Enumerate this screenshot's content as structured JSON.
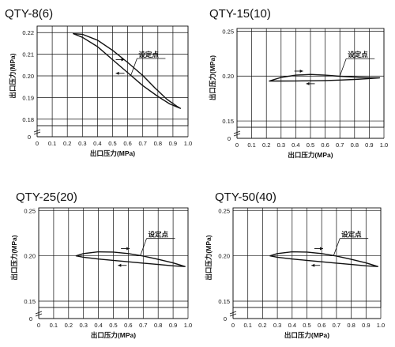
{
  "colors": {
    "ink": "#111111",
    "grid": "#111111",
    "background": "#ffffff"
  },
  "chart_data": [
    {
      "type": "line",
      "title": "QTY-8(6)",
      "xlabel": "出口压力(MPa)",
      "ylabel": "出口压力(MPa)",
      "annotation": "设定点",
      "xlim": [
        0,
        1.0
      ],
      "ylim": [
        0.177,
        0.223
      ],
      "x_ticks": [
        "0",
        "0.1",
        "0.2",
        "0.3",
        "0.4",
        "0.5",
        "0.6",
        "0.7",
        "0.8",
        "0.9",
        "1.0"
      ],
      "y_ticks": [
        {
          "value": 0.18,
          "label": "0.18"
        },
        {
          "value": 0.19,
          "label": "0.19"
        },
        {
          "value": 0.2,
          "label": "0.20"
        },
        {
          "value": 0.21,
          "label": "0.21"
        },
        {
          "value": 0.22,
          "label": "0.22"
        }
      ],
      "y_zero_label": "0",
      "y_break": true,
      "setpoint": [
        0.62,
        0.2
      ],
      "loop": [
        [
          0.24,
          0.2195
        ],
        [
          0.3,
          0.2178
        ],
        [
          0.4,
          0.2135
        ],
        [
          0.5,
          0.2075
        ],
        [
          0.6,
          0.2015
        ],
        [
          0.7,
          0.1955
        ],
        [
          0.8,
          0.1905
        ],
        [
          0.88,
          0.187
        ],
        [
          0.95,
          0.185
        ],
        [
          0.93,
          0.1858
        ],
        [
          0.86,
          0.1892
        ],
        [
          0.78,
          0.1945
        ],
        [
          0.7,
          0.2002
        ],
        [
          0.6,
          0.2062
        ],
        [
          0.5,
          0.2118
        ],
        [
          0.4,
          0.2165
        ],
        [
          0.3,
          0.2192
        ],
        [
          0.24,
          0.2195
        ]
      ],
      "arrows": [
        {
          "at": [
            0.55,
            0.2075
          ],
          "dir": "right",
          "side": "above"
        },
        {
          "at": [
            0.55,
            0.2012
          ],
          "dir": "left",
          "side": "below"
        }
      ]
    },
    {
      "type": "line",
      "title": "QTY-15(10)",
      "xlabel": "出口压力(MPa)",
      "ylabel": "出口压力(MPa)",
      "annotation": "设定点",
      "xlim": [
        0,
        1.0
      ],
      "ylim": [
        0.143,
        0.253
      ],
      "x_ticks": [
        "0",
        "0.1",
        "0.2",
        "0.3",
        "0.4",
        "0.5",
        "0.6",
        "0.7",
        "0.8",
        "0.9",
        "1.0"
      ],
      "y_ticks": [
        {
          "value": 0.15,
          "label": "0.15"
        },
        {
          "value": 0.2,
          "label": "0.20"
        },
        {
          "value": 0.25,
          "label": "0.25"
        }
      ],
      "y_zero_label": "0",
      "y_break": true,
      "setpoint": [
        0.7,
        0.2
      ],
      "loop": [
        [
          0.22,
          0.1945
        ],
        [
          0.3,
          0.1985
        ],
        [
          0.4,
          0.201
        ],
        [
          0.5,
          0.2018
        ],
        [
          0.6,
          0.201
        ],
        [
          0.7,
          0.1998
        ],
        [
          0.8,
          0.199
        ],
        [
          0.9,
          0.1982
        ],
        [
          0.97,
          0.198
        ],
        [
          0.9,
          0.1972
        ],
        [
          0.8,
          0.1962
        ],
        [
          0.7,
          0.1955
        ],
        [
          0.6,
          0.195
        ],
        [
          0.5,
          0.1947
        ],
        [
          0.4,
          0.1946
        ],
        [
          0.3,
          0.1945
        ],
        [
          0.22,
          0.1945
        ]
      ],
      "arrows": [
        {
          "at": [
            0.42,
            0.2055
          ],
          "dir": "right",
          "side": "above"
        },
        {
          "at": [
            0.5,
            0.1915
          ],
          "dir": "left",
          "side": "below"
        }
      ]
    },
    {
      "type": "line",
      "title": "QTY-25(20)",
      "xlabel": "出口压力(MPa)",
      "ylabel": "出口压力(MPa)",
      "annotation": "设定点",
      "xlim": [
        0,
        1.0
      ],
      "ylim": [
        0.143,
        0.253
      ],
      "x_ticks": [
        "0",
        "0.1",
        "0.2",
        "0.3",
        "0.4",
        "0.5",
        "0.6",
        "0.7",
        "0.8",
        "0.9",
        "1.0"
      ],
      "y_ticks": [
        {
          "value": 0.15,
          "label": "0.15"
        },
        {
          "value": 0.2,
          "label": "0.20"
        },
        {
          "value": 0.25,
          "label": "0.25"
        }
      ],
      "y_zero_label": "0",
      "y_break": true,
      "setpoint": [
        0.68,
        0.2
      ],
      "loop": [
        [
          0.25,
          0.2
        ],
        [
          0.3,
          0.2025
        ],
        [
          0.4,
          0.2045
        ],
        [
          0.5,
          0.2042
        ],
        [
          0.6,
          0.2025
        ],
        [
          0.7,
          0.1998
        ],
        [
          0.8,
          0.1962
        ],
        [
          0.9,
          0.1922
        ],
        [
          0.98,
          0.1882
        ],
        [
          0.9,
          0.189
        ],
        [
          0.8,
          0.1905
        ],
        [
          0.7,
          0.192
        ],
        [
          0.6,
          0.1935
        ],
        [
          0.5,
          0.195
        ],
        [
          0.4,
          0.1965
        ],
        [
          0.3,
          0.1985
        ],
        [
          0.25,
          0.2
        ]
      ],
      "arrows": [
        {
          "at": [
            0.58,
            0.208
          ],
          "dir": "right",
          "side": "above"
        },
        {
          "at": [
            0.56,
            0.1895
          ],
          "dir": "left",
          "side": "below"
        }
      ]
    },
    {
      "type": "line",
      "title": "QTY-50(40)",
      "xlabel": "出口压力(MPa)",
      "ylabel": "出口压力(MPa)",
      "annotation": "设定点",
      "xlim": [
        0,
        1.0
      ],
      "ylim": [
        0.143,
        0.253
      ],
      "x_ticks": [
        "0",
        "0.1",
        "0.2",
        "0.3",
        "0.4",
        "0.5",
        "0.6",
        "0.7",
        "0.8",
        "0.9",
        "1.0"
      ],
      "y_ticks": [
        {
          "value": 0.15,
          "label": "0.15"
        },
        {
          "value": 0.2,
          "label": "0.20"
        },
        {
          "value": 0.25,
          "label": "0.25"
        }
      ],
      "y_zero_label": "0",
      "y_break": true,
      "setpoint": [
        0.68,
        0.2
      ],
      "loop": [
        [
          0.25,
          0.2
        ],
        [
          0.3,
          0.2025
        ],
        [
          0.4,
          0.2045
        ],
        [
          0.5,
          0.2042
        ],
        [
          0.6,
          0.2025
        ],
        [
          0.7,
          0.1998
        ],
        [
          0.8,
          0.1962
        ],
        [
          0.9,
          0.1922
        ],
        [
          0.98,
          0.1882
        ],
        [
          0.9,
          0.189
        ],
        [
          0.8,
          0.1905
        ],
        [
          0.7,
          0.192
        ],
        [
          0.6,
          0.1935
        ],
        [
          0.5,
          0.195
        ],
        [
          0.4,
          0.1965
        ],
        [
          0.3,
          0.1985
        ],
        [
          0.25,
          0.2
        ]
      ],
      "arrows": [
        {
          "at": [
            0.58,
            0.208
          ],
          "dir": "right",
          "side": "above"
        },
        {
          "at": [
            0.56,
            0.1895
          ],
          "dir": "left",
          "side": "below"
        }
      ]
    }
  ]
}
